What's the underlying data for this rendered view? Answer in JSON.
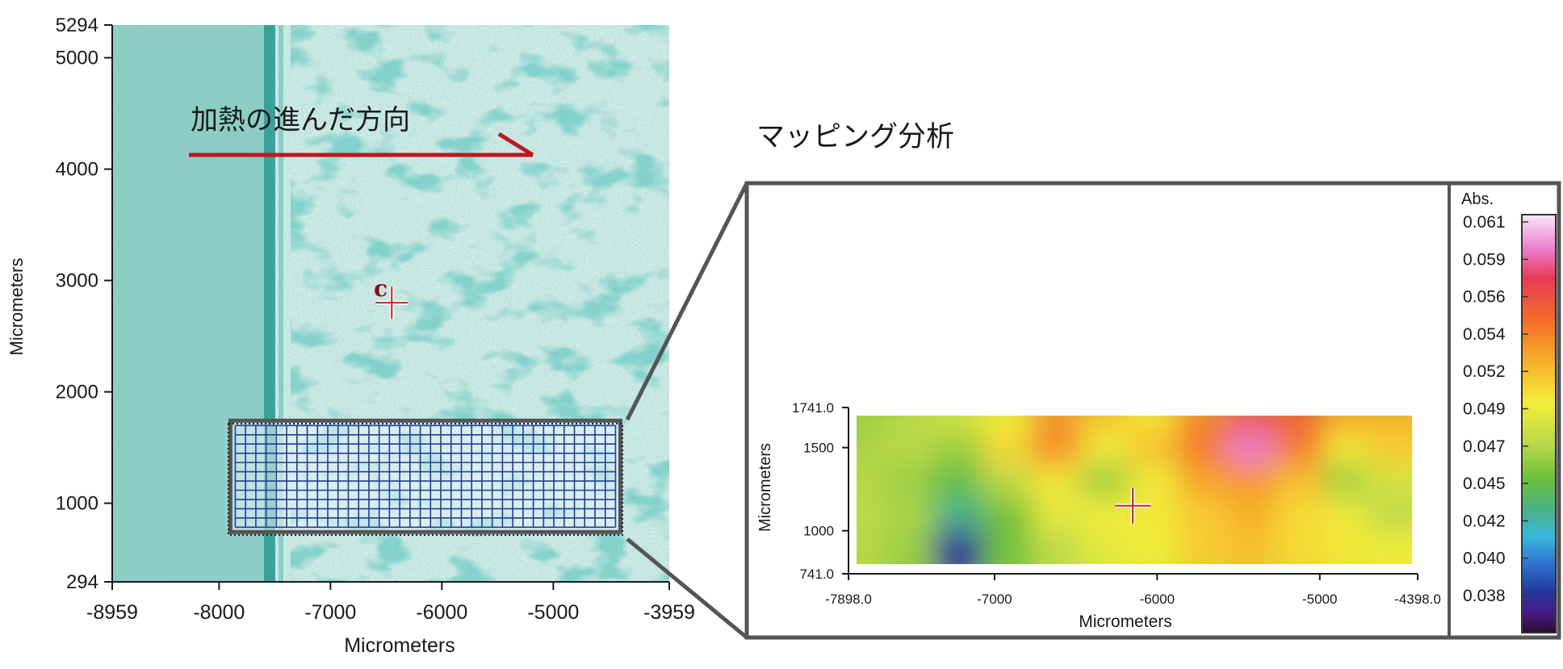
{
  "annotations": {
    "heating_direction": "加熱の進んだ方向",
    "mapping_title": "マッピング分析",
    "point_marker": "c"
  },
  "colors": {
    "arrow": "#c0161d",
    "frame": "#555555",
    "grid": "#1f3f96",
    "micrograph_base": "#cfe9e4",
    "micrograph_stain": "#2fa39a",
    "crosshair": "#cc1f1f"
  },
  "chart_data": [
    {
      "type": "image",
      "xlabel": "Micrometers",
      "ylabel": "Micrometers",
      "xlim": [
        -8959,
        -3959
      ],
      "ylim": [
        294,
        5294
      ],
      "xticks": [
        -8959,
        -8000,
        -7000,
        -6000,
        -5000,
        -3959
      ],
      "yticks": [
        294,
        1000,
        2000,
        3000,
        4000,
        5000,
        5294
      ],
      "mapping_region": {
        "x": [
          -7898,
          -4398
        ],
        "y": [
          741,
          1741
        ]
      },
      "crosshair_point": {
        "x": -6450,
        "y": 2800
      }
    },
    {
      "type": "heatmap",
      "xlabel": "Micrometers",
      "ylabel": "Micrometers",
      "xlim": [
        -7898.0,
        -4398.0
      ],
      "ylim": [
        741.0,
        1741.0
      ],
      "xticks": [
        "-7898.0",
        "-7000",
        "-6000",
        "-5000",
        "-4398.0"
      ],
      "yticks": [
        "741.0",
        "1000",
        "1500",
        "1741.0"
      ],
      "colorbar": {
        "label": "Abs.",
        "min": 0.037,
        "max": 0.061,
        "ticks": [
          "0.061",
          "0.059",
          "0.056",
          "0.054",
          "0.052",
          "0.049",
          "0.047",
          "0.045",
          "0.042",
          "0.040",
          "0.038"
        ]
      },
      "grid": {
        "rows": 5,
        "cols": 12,
        "row_y": [
          1650,
          1450,
          1250,
          1050,
          850
        ],
        "col_x": [
          -7750,
          -7450,
          -7150,
          -6850,
          -6550,
          -6250,
          -5950,
          -5650,
          -5350,
          -5050,
          -4750,
          -4500
        ],
        "values": [
          [
            0.047,
            0.0478,
            0.049,
            0.05,
            0.0535,
            0.052,
            0.0505,
            0.054,
            0.056,
            0.0555,
            0.053,
            0.0525
          ],
          [
            0.0475,
            0.048,
            0.047,
            0.051,
            0.054,
            0.05,
            0.052,
            0.0545,
            0.059,
            0.0545,
            0.05,
            0.0515
          ],
          [
            0.0478,
            0.047,
            0.0455,
            0.048,
            0.0505,
            0.047,
            0.05,
            0.053,
            0.0535,
            0.052,
            0.047,
            0.049
          ],
          [
            0.048,
            0.0475,
            0.044,
            0.046,
            0.0495,
            0.05,
            0.0505,
            0.0515,
            0.0525,
            0.051,
            0.05,
            0.048
          ],
          [
            0.0478,
            0.047,
            0.039,
            0.046,
            0.048,
            0.0495,
            0.05,
            0.0515,
            0.052,
            0.051,
            0.0505,
            0.05
          ]
        ]
      },
      "crosshair_point": {
        "x": -6150,
        "y": 1150
      }
    }
  ]
}
